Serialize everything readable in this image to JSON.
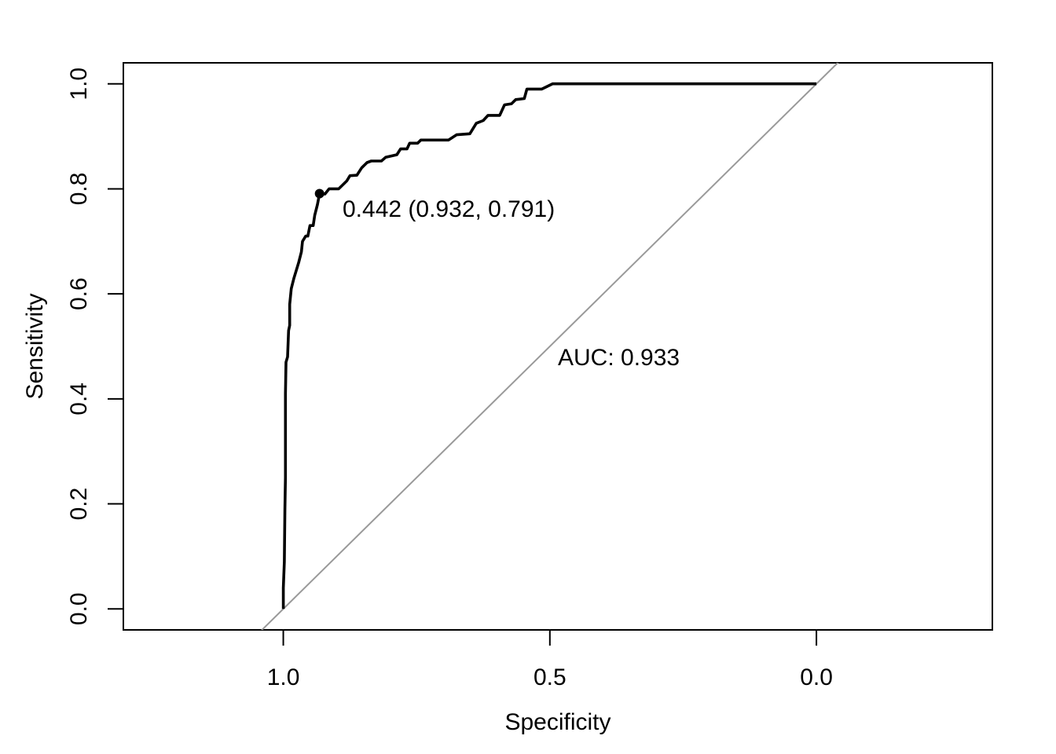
{
  "chart_data": {
    "type": "line",
    "title": "",
    "xlabel": "Specificity",
    "ylabel": "Sensitivity",
    "xlim": [
      1.3,
      -0.33
    ],
    "ylim": [
      -0.04,
      1.04
    ],
    "x_reversed": true,
    "grid": false,
    "x_ticks": [
      {
        "value": 1.0,
        "label": "1.0"
      },
      {
        "value": 0.5,
        "label": "0.5"
      },
      {
        "value": 0.0,
        "label": "0.0"
      }
    ],
    "y_ticks": [
      {
        "value": 0.0,
        "label": "0.0"
      },
      {
        "value": 0.2,
        "label": "0.2"
      },
      {
        "value": 0.4,
        "label": "0.4"
      },
      {
        "value": 0.6,
        "label": "0.6"
      },
      {
        "value": 0.8,
        "label": "0.8"
      },
      {
        "value": 1.0,
        "label": "1.0"
      }
    ],
    "series": [
      {
        "color": "#000000",
        "points": [
          [
            1.0,
            0.0
          ],
          [
            1.0,
            0.04
          ],
          [
            0.998,
            0.09
          ],
          [
            0.997,
            0.19
          ],
          [
            0.996,
            0.25
          ],
          [
            0.996,
            0.41
          ],
          [
            0.995,
            0.47
          ],
          [
            0.992,
            0.48
          ],
          [
            0.99,
            0.53
          ],
          [
            0.988,
            0.54
          ],
          [
            0.988,
            0.58
          ],
          [
            0.985,
            0.61
          ],
          [
            0.98,
            0.63
          ],
          [
            0.971,
            0.66
          ],
          [
            0.966,
            0.68
          ],
          [
            0.964,
            0.7
          ],
          [
            0.958,
            0.71
          ],
          [
            0.954,
            0.71
          ],
          [
            0.95,
            0.73
          ],
          [
            0.944,
            0.73
          ],
          [
            0.941,
            0.75
          ],
          [
            0.936,
            0.77
          ],
          [
            0.932,
            0.791
          ],
          [
            0.922,
            0.79
          ],
          [
            0.914,
            0.8
          ],
          [
            0.896,
            0.8
          ],
          [
            0.881,
            0.815
          ],
          [
            0.875,
            0.825
          ],
          [
            0.862,
            0.826
          ],
          [
            0.853,
            0.84
          ],
          [
            0.843,
            0.85
          ],
          [
            0.835,
            0.853
          ],
          [
            0.816,
            0.853
          ],
          [
            0.808,
            0.86
          ],
          [
            0.787,
            0.865
          ],
          [
            0.78,
            0.876
          ],
          [
            0.768,
            0.876
          ],
          [
            0.763,
            0.887
          ],
          [
            0.748,
            0.887
          ],
          [
            0.742,
            0.893
          ],
          [
            0.69,
            0.893
          ],
          [
            0.675,
            0.903
          ],
          [
            0.65,
            0.905
          ],
          [
            0.638,
            0.925
          ],
          [
            0.625,
            0.93
          ],
          [
            0.616,
            0.94
          ],
          [
            0.594,
            0.94
          ],
          [
            0.585,
            0.96
          ],
          [
            0.572,
            0.962
          ],
          [
            0.564,
            0.97
          ],
          [
            0.548,
            0.972
          ],
          [
            0.543,
            0.99
          ],
          [
            0.515,
            0.99
          ],
          [
            0.495,
            1.0
          ],
          [
            0.0,
            1.0
          ]
        ]
      }
    ],
    "reference_line": {
      "color": "#999999",
      "from": [
        1.0,
        0.0
      ],
      "to": [
        0.0,
        1.0
      ]
    },
    "best_point": {
      "x": 0.932,
      "y": 0.791
    },
    "annotations": [
      {
        "text": "0.442 (0.932, 0.791)"
      },
      {
        "text": "AUC: 0.933"
      }
    ]
  }
}
